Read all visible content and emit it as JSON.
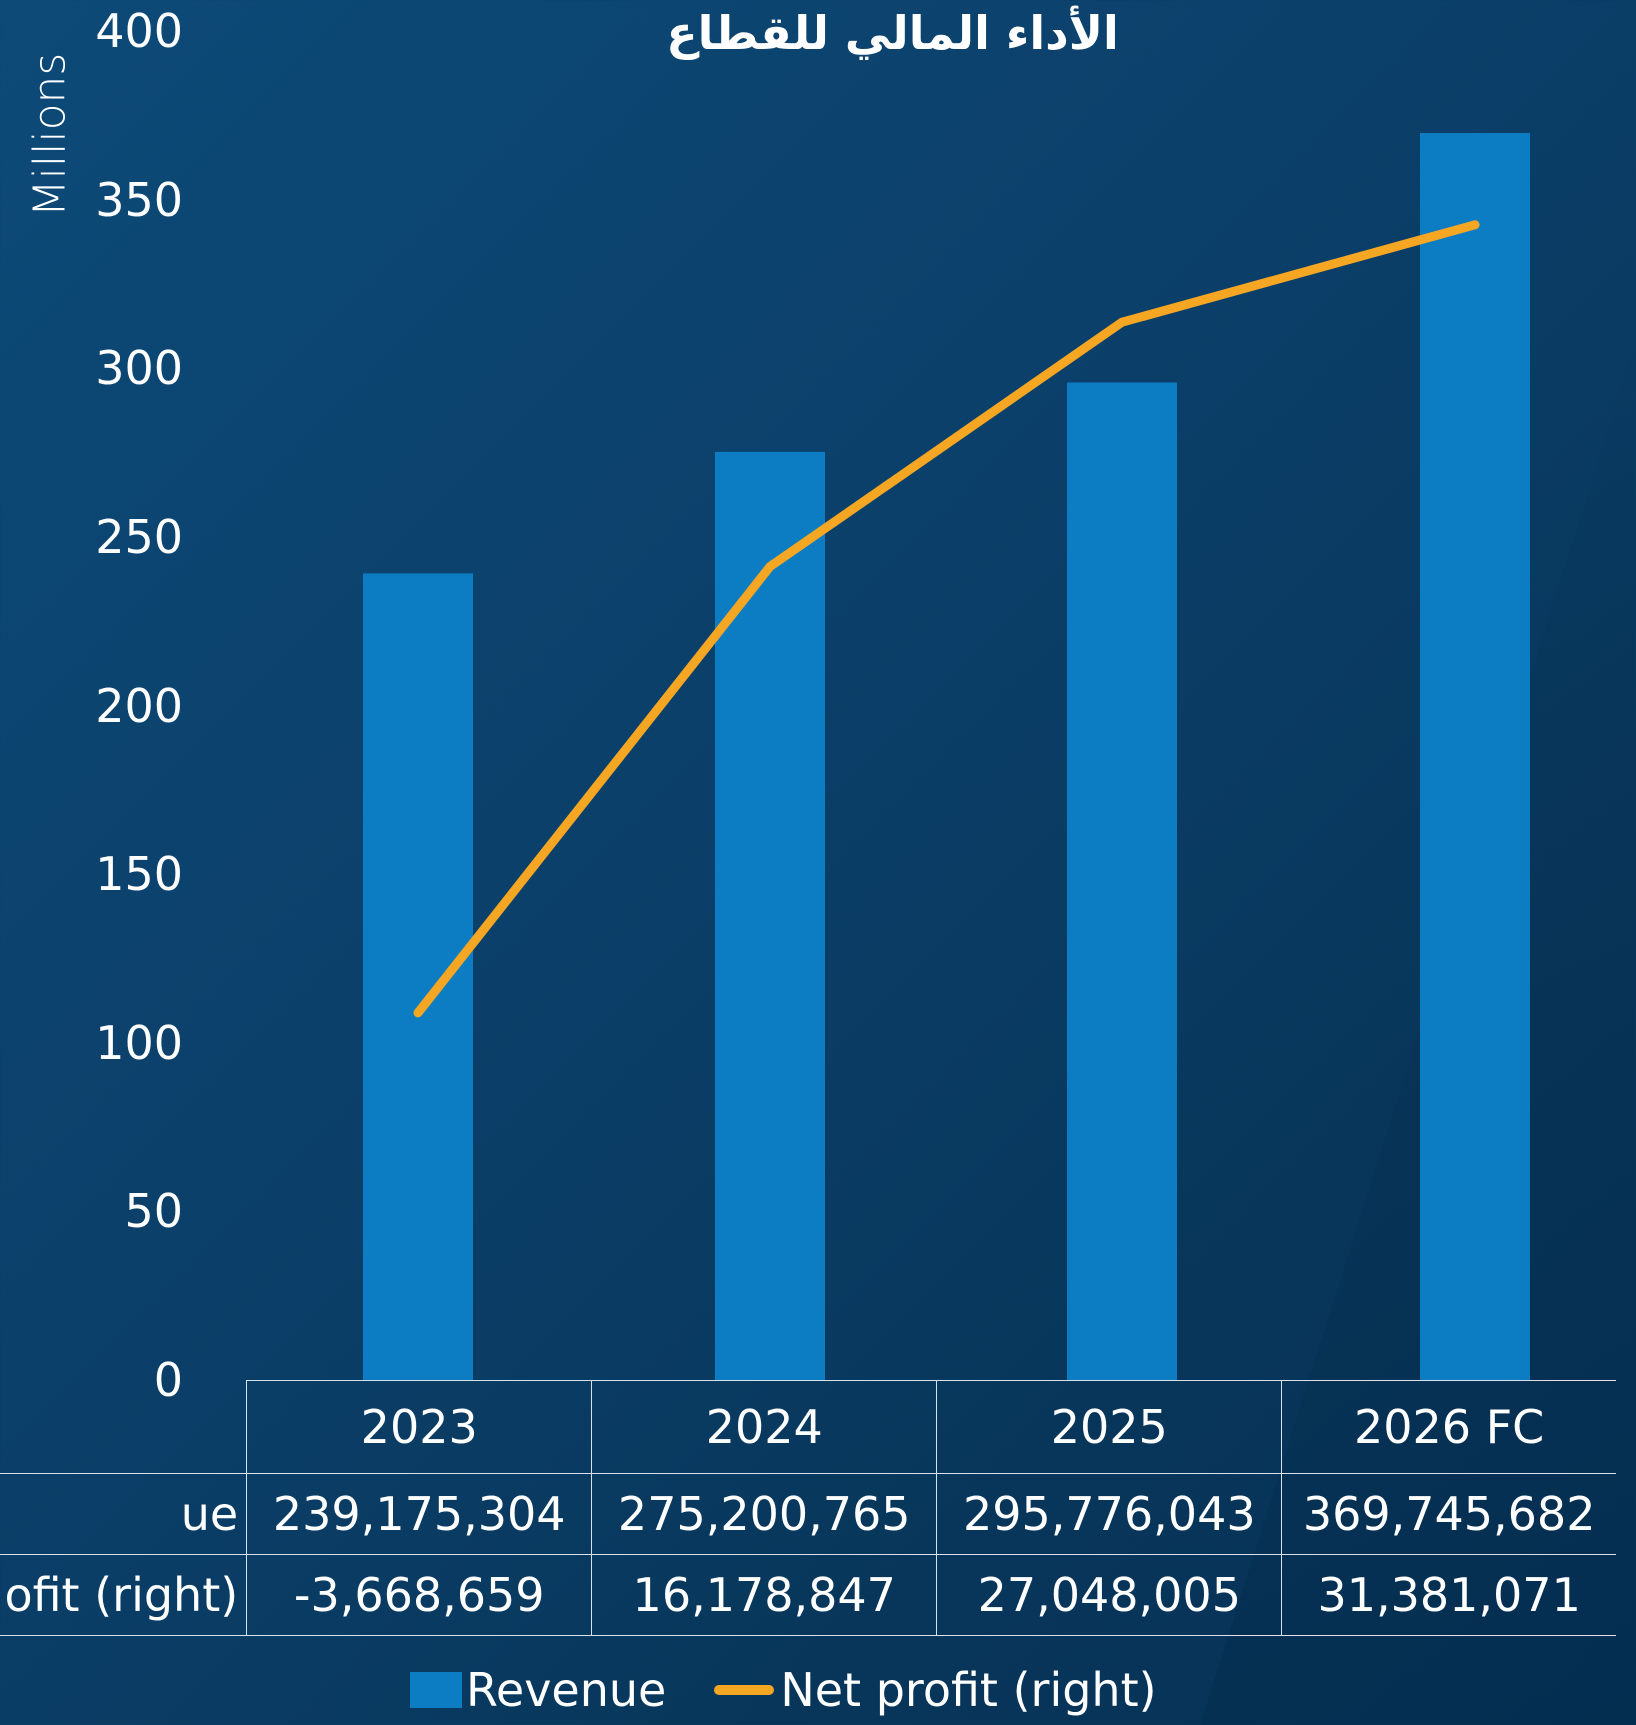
{
  "chart_data": {
    "type": "bar",
    "title": "الأداء المالي للقطاع",
    "ylabel": "Millions",
    "ylim": [
      0,
      400
    ],
    "yticks": [
      "0",
      "50",
      "100",
      "150",
      "200",
      "250",
      "300",
      "350",
      "400"
    ],
    "categories": [
      "2023",
      "2024",
      "2025",
      "2026 FC"
    ],
    "series": [
      {
        "name": "Revenue",
        "type": "bar",
        "axis": "left",
        "color": "#0c7dc2",
        "values": [
          239175304,
          275200765,
          295776043,
          369745682
        ],
        "labels": [
          "239,175,304",
          "275,200,765",
          "295,776,043",
          "369,745,682"
        ]
      },
      {
        "name": "Net profit (right)",
        "type": "line",
        "axis": "right",
        "color": "#f5a623",
        "values": [
          -3668659,
          16178847,
          27048005,
          31381071
        ],
        "labels": [
          "-3,668,659",
          "16,178,847",
          "27,048,005",
          "31,381,071"
        ]
      }
    ],
    "table_row_labels": [
      "ue",
      "ofit (right)"
    ],
    "legend": [
      "Revenue",
      "Net profit (right)"
    ],
    "legend_position": "bottom",
    "grid": false
  }
}
